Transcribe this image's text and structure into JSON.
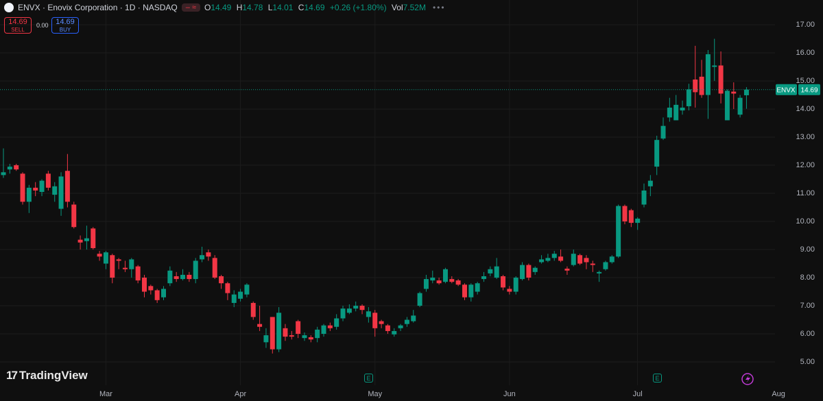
{
  "header": {
    "title": "ENVX · Enovix Corporation · 1D · NASDAQ",
    "ohlc": [
      {
        "key": "O",
        "value": "14.49"
      },
      {
        "key": "H",
        "value": "14.78"
      },
      {
        "key": "L",
        "value": "14.01"
      },
      {
        "key": "C",
        "value": "14.69"
      }
    ],
    "change": "+0.26 (+1.80%)",
    "volume_key": "Vol",
    "volume": "7.52M"
  },
  "trade": {
    "sell_price": "14.69",
    "sell_label": "SELL",
    "spread": "0.00",
    "buy_price": "14.69",
    "buy_label": "BUY"
  },
  "watermark": "TradingView",
  "events": [
    {
      "label": "E"
    },
    {
      "label": "E"
    }
  ],
  "chart_data": {
    "type": "candlestick",
    "up_color": "#089981",
    "down_color": "#f23645",
    "last_price_label": "ENVX",
    "grid": true,
    "categories": [
      null,
      null,
      null,
      null,
      null,
      null,
      null,
      null,
      null,
      null,
      null,
      null,
      null,
      null,
      null,
      null,
      "Mar",
      null,
      null,
      null,
      null,
      null,
      null,
      null,
      null,
      null,
      null,
      null,
      null,
      null,
      null,
      null,
      null,
      null,
      null,
      null,
      null,
      "Apr",
      null,
      null,
      null,
      null,
      null,
      null,
      null,
      null,
      null,
      null,
      null,
      null,
      null,
      null,
      null,
      null,
      null,
      null,
      null,
      null,
      "May",
      null,
      null,
      null,
      null,
      null,
      null,
      null,
      null,
      null,
      null,
      null,
      null,
      null,
      null,
      null,
      null,
      null,
      null,
      null,
      null,
      "Jun",
      null,
      null,
      null,
      null,
      null,
      null,
      null,
      null,
      null,
      null,
      null,
      null,
      null,
      null,
      null,
      null,
      null,
      null,
      null,
      "Jul",
      null,
      null,
      null,
      null,
      null,
      null,
      null,
      null,
      null,
      null,
      null,
      null,
      null,
      null,
      null,
      null,
      null,
      null,
      null,
      null,
      null,
      "Aug"
    ],
    "open": [
      11.65,
      11.85,
      12.0,
      11.7,
      10.7,
      11.2,
      11.05,
      11.7,
      10.95,
      10.45,
      11.8,
      10.6,
      9.35,
      9.3,
      9.75,
      8.85,
      8.5,
      8.8,
      8.65,
      8.35,
      8.3,
      8.4,
      8.0,
      7.7,
      7.55,
      7.3,
      7.8,
      8.05,
      7.95,
      8.1,
      7.95,
      8.65,
      8.9,
      8.7,
      8.05,
      7.8,
      7.1,
      7.25,
      7.4,
      7.1,
      6.35,
      5.7,
      6.6,
      5.45,
      6.2,
      5.95,
      6.45,
      5.85,
      5.88,
      5.85,
      6.0,
      6.3,
      6.25,
      6.55,
      6.75,
      6.9,
      7.0,
      6.6,
      6.75,
      6.45,
      6.3,
      5.98,
      6.2,
      6.35,
      6.45,
      7.0,
      7.6,
      7.9,
      7.9,
      7.85,
      7.95,
      7.9,
      7.75,
      7.3,
      7.5,
      7.95,
      8.15,
      8.0,
      8.05,
      7.6,
      7.5,
      7.95,
      8.45,
      8.2,
      8.55,
      8.6,
      8.7,
      8.75,
      8.32,
      8.45,
      8.8,
      8.7,
      8.5,
      8.15,
      8.3,
      8.55,
      8.75,
      10.55,
      10.4,
      9.95,
      10.6,
      11.25,
      11.95,
      12.95,
      13.7,
      13.6,
      13.95,
      14.1,
      15.05,
      15.15,
      14.5,
      15.5,
      15.55,
      13.6,
      14.62,
      13.8,
      14.49,
      null,
      null,
      null,
      null,
      null
    ],
    "high": [
      12.6,
      12.05,
      12.05,
      11.75,
      11.3,
      11.4,
      11.5,
      11.8,
      11.4,
      11.75,
      12.4,
      10.7,
      9.5,
      9.85,
      9.8,
      8.95,
      8.95,
      8.85,
      8.7,
      8.6,
      8.7,
      8.45,
      8.1,
      7.75,
      7.6,
      7.7,
      8.4,
      8.2,
      8.3,
      8.2,
      8.7,
      9.1,
      9.0,
      8.8,
      8.1,
      7.85,
      7.55,
      7.6,
      7.8,
      7.15,
      7.0,
      6.2,
      6.6,
      6.95,
      6.35,
      6.1,
      6.5,
      6.05,
      5.95,
      6.25,
      6.35,
      6.4,
      6.7,
      7.0,
      7.05,
      7.15,
      7.05,
      6.95,
      6.85,
      6.5,
      6.35,
      6.2,
      6.35,
      6.6,
      6.85,
      7.5,
      8.1,
      8.25,
      8.0,
      8.35,
      8.05,
      7.95,
      7.8,
      7.8,
      7.85,
      8.2,
      8.4,
      8.7,
      8.1,
      7.7,
      8.05,
      8.55,
      8.5,
      8.4,
      8.8,
      8.85,
      8.95,
      9.0,
      8.4,
      9.0,
      8.85,
      8.8,
      8.6,
      8.25,
      8.6,
      8.8,
      10.6,
      10.6,
      10.45,
      10.15,
      11.35,
      11.65,
      13.05,
      13.7,
      14.4,
      14.5,
      14.3,
      14.9,
      16.25,
      15.75,
      16.1,
      16.5,
      16.05,
      14.7,
      14.95,
      14.5,
      14.78,
      null,
      null,
      null,
      null,
      null
    ],
    "low": [
      11.55,
      11.7,
      11.8,
      10.6,
      10.3,
      10.9,
      10.9,
      11.1,
      10.7,
      10.2,
      10.5,
      9.75,
      9.0,
      9.0,
      9.0,
      8.6,
      8.3,
      7.8,
      8.3,
      8.2,
      8.0,
      7.8,
      7.3,
      7.4,
      7.1,
      7.2,
      7.7,
      7.85,
      7.9,
      7.85,
      7.8,
      8.55,
      8.6,
      7.95,
      7.6,
      7.2,
      6.95,
      7.15,
      7.3,
      6.5,
      6.1,
      5.5,
      5.3,
      5.35,
      5.75,
      5.8,
      5.85,
      5.75,
      5.7,
      5.7,
      5.9,
      6.1,
      6.15,
      6.45,
      6.7,
      6.8,
      6.7,
      6.4,
      5.9,
      6.2,
      6.0,
      5.9,
      6.1,
      6.25,
      6.4,
      6.95,
      7.5,
      7.8,
      7.75,
      7.8,
      7.8,
      7.7,
      7.2,
      7.15,
      7.4,
      7.85,
      8.05,
      7.95,
      7.55,
      7.4,
      7.4,
      7.9,
      7.9,
      8.1,
      8.5,
      8.55,
      8.6,
      8.55,
      8.1,
      8.4,
      8.45,
      8.3,
      8.2,
      7.85,
      8.25,
      8.5,
      8.7,
      9.9,
      9.8,
      9.7,
      10.5,
      10.9,
      11.65,
      12.9,
      13.55,
      13.6,
      13.8,
      13.95,
      14.05,
      14.4,
      13.65,
      15.0,
      14.2,
      13.6,
      14.0,
      13.7,
      14.01,
      null,
      null,
      null,
      null,
      null
    ],
    "close": [
      11.75,
      11.95,
      11.85,
      10.7,
      11.2,
      11.1,
      11.45,
      11.2,
      11.25,
      11.6,
      10.7,
      9.8,
      9.25,
      9.4,
      9.05,
      8.75,
      8.9,
      8.0,
      8.6,
      8.3,
      8.65,
      7.9,
      7.5,
      7.55,
      7.2,
      7.6,
      8.25,
      7.95,
      8.1,
      7.95,
      8.6,
      8.8,
      8.75,
      8.0,
      7.8,
      7.45,
      7.4,
      7.5,
      7.75,
      6.6,
      6.25,
      5.95,
      5.45,
      6.75,
      5.9,
      5.9,
      6.0,
      5.95,
      5.8,
      6.15,
      6.3,
      6.2,
      6.55,
      6.9,
      6.9,
      7.0,
      6.85,
      6.8,
      6.2,
      6.35,
      6.1,
      6.1,
      6.3,
      6.5,
      6.65,
      7.45,
      7.95,
      8.0,
      7.8,
      8.3,
      7.85,
      7.75,
      7.3,
      7.75,
      7.8,
      8.05,
      8.3,
      8.4,
      7.65,
      7.5,
      8.0,
      8.45,
      8.0,
      8.35,
      8.65,
      8.7,
      8.85,
      8.6,
      8.25,
      8.85,
      8.5,
      8.55,
      8.45,
      8.2,
      8.55,
      8.75,
      10.55,
      10.0,
      9.95,
      10.1,
      11.1,
      11.45,
      12.9,
      13.4,
      14.05,
      14.15,
      14.05,
      14.7,
      14.6,
      14.5,
      15.95,
      15.55,
      14.55,
      14.65,
      14.55,
      14.4,
      14.69,
      null,
      null,
      null,
      null,
      null
    ],
    "ylim": [
      4.22,
      17.88
    ],
    "yticks": [
      {
        "value": 5,
        "label": "5.00"
      },
      {
        "value": 6,
        "label": "6.00"
      },
      {
        "value": 7,
        "label": "7.00"
      },
      {
        "value": 8,
        "label": "8.00"
      },
      {
        "value": 9,
        "label": "9.00"
      },
      {
        "value": 10,
        "label": "10.00"
      },
      {
        "value": 11,
        "label": "11.00"
      },
      {
        "value": 12,
        "label": "12.00"
      },
      {
        "value": 13,
        "label": "13.00"
      },
      {
        "value": 14,
        "label": "14.00"
      },
      {
        "value": 15,
        "label": "15.00"
      },
      {
        "value": 16,
        "label": "16.00"
      },
      {
        "value": 17,
        "label": "17.00"
      }
    ]
  }
}
